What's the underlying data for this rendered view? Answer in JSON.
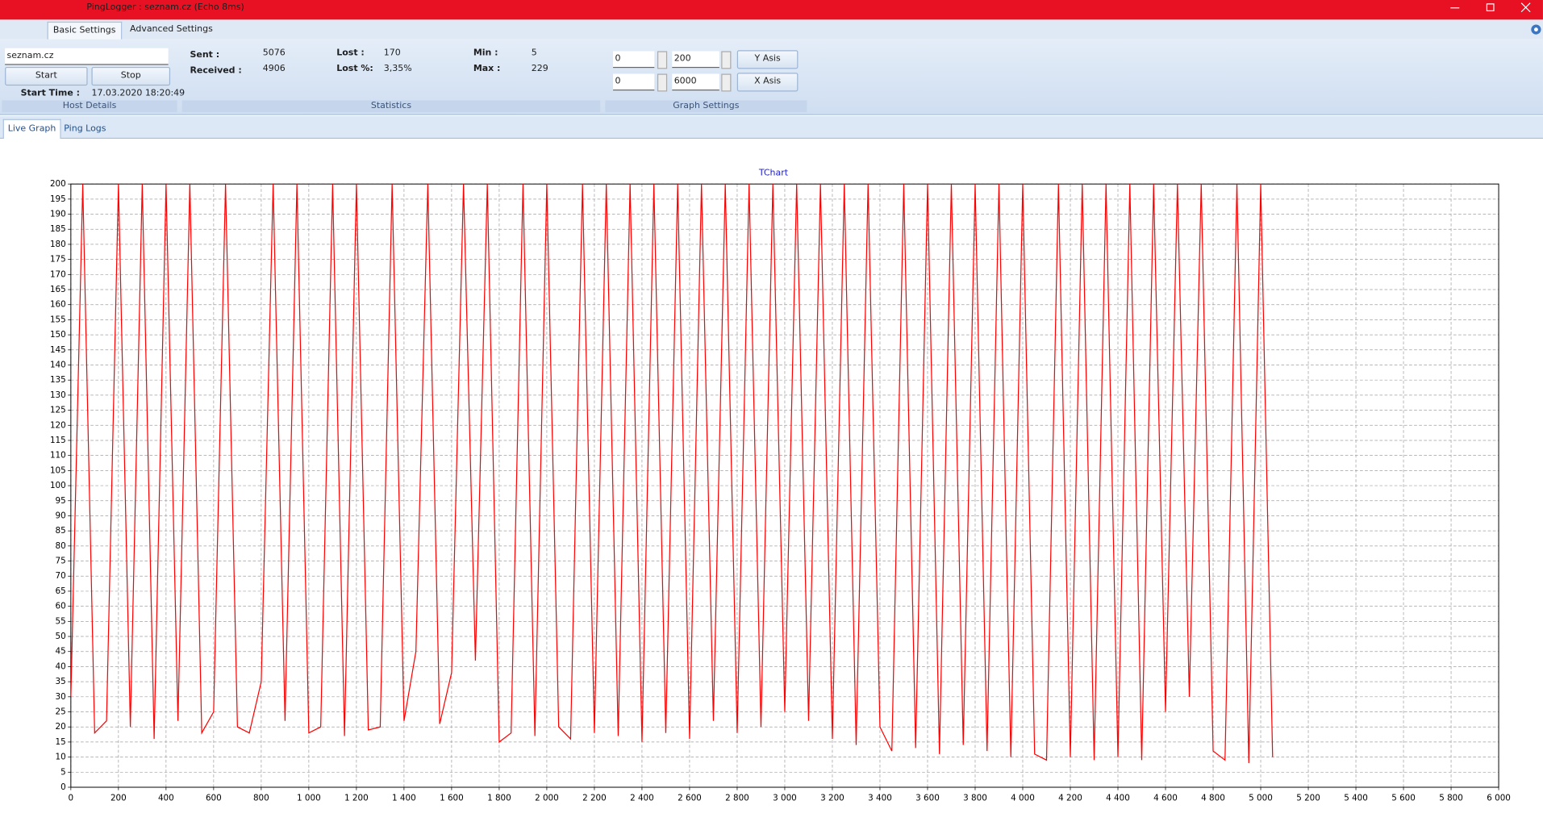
{
  "window": {
    "title": "PingLogger : seznam.cz (Echo 8ms)",
    "tabs": [
      "Basic Settings",
      "Advanced Settings"
    ]
  },
  "host_details": {
    "host": "seznam.cz",
    "start_button": "Start",
    "stop_button": "Stop",
    "start_time_label": "Start Time :",
    "start_time": "17.03.2020 18:20:49",
    "group_label": "Host Details"
  },
  "statistics": {
    "sent_label": "Sent :",
    "sent": 5076,
    "received_label": "Received :",
    "received": 4906,
    "lost_label": "Lost :",
    "lost": 170,
    "lost_percent_label": "Lost %:",
    "lost_percent": "3,35%",
    "min_label": "Min :",
    "min": 5,
    "max_label": "Max :",
    "max": 229,
    "group_label": "Statistics"
  },
  "graph_settings": {
    "y_min": 0,
    "y_max": 200,
    "x_min": 0,
    "x_max": 6000,
    "y_button": "Y Asis",
    "x_button": "X Asis",
    "group_label": "Graph Settings"
  },
  "view_tabs": [
    "Live Graph",
    "Ping Logs"
  ],
  "chart_data": {
    "type": "line",
    "title": "TChart",
    "color": "#ff0000",
    "grid": true,
    "x": [
      0,
      50,
      100,
      150,
      200,
      250,
      300,
      350,
      400,
      450,
      500,
      550,
      600,
      650,
      700,
      750,
      800,
      850,
      900,
      950,
      1000,
      1050,
      1100,
      1150,
      1200,
      1250,
      1300,
      1350,
      1400,
      1450,
      1500,
      1550,
      1600,
      1650,
      1700,
      1750,
      1800,
      1850,
      1900,
      1950,
      2000,
      2050,
      2100,
      2150,
      2200,
      2250,
      2300,
      2350,
      2400,
      2450,
      2500,
      2550,
      2600,
      2650,
      2700,
      2750,
      2800,
      2850,
      2900,
      2950,
      3000,
      3050,
      3100,
      3150,
      3200,
      3250,
      3300,
      3350,
      3400,
      3450,
      3500,
      3550,
      3600,
      3650,
      3700,
      3750,
      3800,
      3850,
      3900,
      3950,
      4000,
      4050,
      4100,
      4150,
      4200,
      4250,
      4300,
      4350,
      4400,
      4450,
      4500,
      4550,
      4600,
      4650,
      4700,
      4750,
      4800,
      4850,
      4900,
      4950,
      5000,
      5050
    ],
    "values": [
      30,
      200,
      18,
      22,
      200,
      20,
      200,
      16,
      200,
      22,
      200,
      18,
      25,
      200,
      20,
      18,
      35,
      200,
      22,
      200,
      18,
      20,
      200,
      17,
      200,
      19,
      20,
      200,
      22,
      45,
      200,
      21,
      38,
      200,
      42,
      200,
      15,
      18,
      200,
      17,
      200,
      20,
      16,
      200,
      18,
      200,
      17,
      200,
      15,
      200,
      18,
      200,
      16,
      200,
      22,
      200,
      18,
      200,
      20,
      200,
      25,
      200,
      22,
      200,
      16,
      200,
      14,
      200,
      20,
      12,
      200,
      13,
      200,
      11,
      200,
      14,
      200,
      12,
      200,
      10,
      200,
      11,
      9,
      200,
      10,
      200,
      9,
      200,
      10,
      200,
      9,
      200,
      25,
      200,
      30,
      200,
      12,
      9,
      200,
      8,
      200,
      10
    ],
    "xlim": [
      0,
      6000
    ],
    "ylim": [
      0,
      200
    ],
    "xticks": [
      0,
      200,
      400,
      600,
      800,
      {
        "value": 1000,
        "label": "1 000"
      },
      {
        "value": 1200,
        "label": "1 200"
      },
      {
        "value": 1400,
        "label": "1 400"
      },
      {
        "value": 1600,
        "label": "1 600"
      },
      {
        "value": 1800,
        "label": "1 800"
      },
      {
        "value": 2000,
        "label": "2 000"
      },
      {
        "value": 2200,
        "label": "2 200"
      },
      {
        "value": 2400,
        "label": "2 400"
      },
      {
        "value": 2600,
        "label": "2 600"
      },
      {
        "value": 2800,
        "label": "2 800"
      },
      {
        "value": 3000,
        "label": "3 000"
      },
      {
        "value": 3200,
        "label": "3 200"
      },
      {
        "value": 3400,
        "label": "3 400"
      },
      {
        "value": 3600,
        "label": "3 600"
      },
      {
        "value": 3800,
        "label": "3 800"
      },
      {
        "value": 4000,
        "label": "4 000"
      },
      {
        "value": 4200,
        "label": "4 200"
      },
      {
        "value": 4400,
        "label": "4 400"
      },
      {
        "value": 4600,
        "label": "4 600"
      },
      {
        "value": 4800,
        "label": "4 800"
      },
      {
        "value": 5000,
        "label": "5 000"
      },
      {
        "value": 5200,
        "label": "5 200"
      },
      {
        "value": 5400,
        "label": "5 400"
      },
      {
        "value": 5600,
        "label": "5 600"
      },
      {
        "value": 5800,
        "label": "5 800"
      },
      {
        "value": 6000,
        "label": "6 000"
      }
    ],
    "yticks": [
      0,
      5,
      10,
      15,
      20,
      25,
      30,
      35,
      40,
      45,
      50,
      55,
      60,
      65,
      70,
      75,
      80,
      85,
      90,
      95,
      100,
      105,
      110,
      115,
      120,
      125,
      130,
      135,
      140,
      145,
      150,
      155,
      160,
      165,
      170,
      175,
      180,
      185,
      190,
      195,
      200
    ]
  }
}
